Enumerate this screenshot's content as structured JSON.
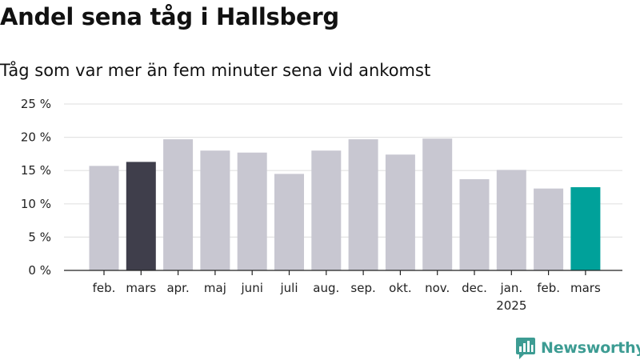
{
  "title": "Andel sena tåg i Hallsberg",
  "subtitle": "Tåg som var mer än fem minuter sena vid ankomst",
  "brand": {
    "name": "Newsworthy",
    "icon": "newsworthy-logo-icon",
    "color": "#3d9c93"
  },
  "chart_data": {
    "type": "bar",
    "categories": [
      "feb.",
      "mars",
      "apr.",
      "maj",
      "juni",
      "juli",
      "aug.",
      "sep.",
      "okt.",
      "nov.",
      "dec.",
      "jan.",
      "feb.",
      "mars"
    ],
    "category_sublabels": [
      "",
      "",
      "",
      "",
      "",
      "",
      "",
      "",
      "",
      "",
      "",
      "2025",
      "",
      ""
    ],
    "values": [
      15.7,
      16.3,
      19.7,
      18.0,
      17.7,
      14.5,
      18.0,
      19.7,
      17.4,
      19.8,
      13.7,
      15.1,
      12.3,
      12.5
    ],
    "bar_colors": [
      "#c8c7d1",
      "#3f3e4b",
      "#c8c7d1",
      "#c8c7d1",
      "#c8c7d1",
      "#c8c7d1",
      "#c8c7d1",
      "#c8c7d1",
      "#c8c7d1",
      "#c8c7d1",
      "#c8c7d1",
      "#c8c7d1",
      "#c8c7d1",
      "#00a19a"
    ],
    "yticks": [
      "0 %",
      "5 %",
      "10 %",
      "15 %",
      "20 %",
      "25 %"
    ],
    "ylim": [
      0,
      25
    ],
    "xlabel": "",
    "ylabel": "",
    "grid": true
  }
}
